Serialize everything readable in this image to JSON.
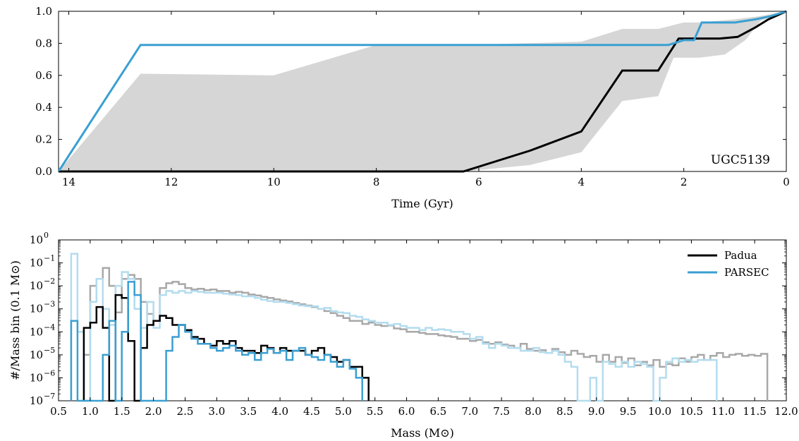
{
  "chart_data": [
    {
      "type": "line",
      "xlabel": "Time (Gyr)",
      "ylabel": "",
      "xlim": [
        14.2,
        0
      ],
      "ylim": [
        0,
        1.0
      ],
      "x_ticks": [
        14,
        12,
        10,
        8,
        6,
        4,
        2,
        0
      ],
      "y_ticks": [
        0.0,
        0.2,
        0.4,
        0.6,
        0.8,
        1.0
      ],
      "x_tick_labels": [
        "14",
        "12",
        "10",
        "8",
        "6",
        "4",
        "2",
        "0"
      ],
      "y_tick_labels": [
        "0.0",
        "0.2",
        "0.4",
        "0.6",
        "0.8",
        "1.0"
      ],
      "annotation": "UGC5139",
      "colors": {
        "black": "#000000",
        "blue": "#3a9fd2",
        "band": "#d6d6d6"
      },
      "band": {
        "upper": [
          [
            14.2,
            0.0
          ],
          [
            12.6,
            0.61
          ],
          [
            10.0,
            0.6
          ],
          [
            8.0,
            0.79
          ],
          [
            6.3,
            0.79
          ],
          [
            4.0,
            0.81
          ],
          [
            3.2,
            0.89
          ],
          [
            2.5,
            0.89
          ],
          [
            2.0,
            0.93
          ],
          [
            1.7,
            0.93
          ],
          [
            1.0,
            0.95
          ],
          [
            0.5,
            0.97
          ],
          [
            0.0,
            1.0
          ]
        ],
        "lower": [
          [
            14.2,
            0.0
          ],
          [
            6.3,
            0.0
          ],
          [
            5.0,
            0.04
          ],
          [
            4.0,
            0.12
          ],
          [
            3.2,
            0.44
          ],
          [
            2.5,
            0.47
          ],
          [
            2.2,
            0.71
          ],
          [
            1.7,
            0.71
          ],
          [
            1.2,
            0.73
          ],
          [
            0.8,
            0.82
          ],
          [
            0.5,
            0.94
          ],
          [
            0.0,
            1.0
          ]
        ]
      },
      "series": [
        {
          "color": "#000000",
          "points": [
            [
              14.2,
              0.0
            ],
            [
              6.3,
              0.0
            ],
            [
              5.0,
              0.13
            ],
            [
              4.0,
              0.25
            ],
            [
              3.2,
              0.63
            ],
            [
              2.5,
              0.63
            ],
            [
              2.1,
              0.83
            ],
            [
              1.7,
              0.83
            ],
            [
              1.3,
              0.83
            ],
            [
              0.95,
              0.84
            ],
            [
              0.6,
              0.9
            ],
            [
              0.35,
              0.95
            ],
            [
              0.0,
              1.0
            ]
          ]
        },
        {
          "color": "#3a9fd2",
          "points": [
            [
              14.2,
              0.0
            ],
            [
              12.6,
              0.79
            ],
            [
              2.3,
              0.79
            ],
            [
              2.0,
              0.82
            ],
            [
              1.8,
              0.82
            ],
            [
              1.65,
              0.93
            ],
            [
              1.0,
              0.93
            ],
            [
              0.6,
              0.95
            ],
            [
              0.3,
              0.97
            ],
            [
              0.0,
              1.0
            ]
          ]
        }
      ]
    },
    {
      "type": "histogram",
      "xlabel": "Mass (M⊙)",
      "ylabel": "#/Mass bin (0.1 M⊙)",
      "xlim": [
        0.5,
        12.0
      ],
      "ylim_log10": [
        -7,
        0
      ],
      "x_ticks": [
        0.5,
        1.0,
        1.5,
        2.0,
        2.5,
        3.0,
        3.5,
        4.0,
        4.5,
        5.0,
        5.5,
        6.0,
        6.5,
        7.0,
        7.5,
        8.0,
        8.5,
        9.0,
        9.5,
        10.0,
        10.5,
        11.0,
        11.5,
        12.0
      ],
      "x_tick_labels": [
        "0.5",
        "1.0",
        "1.5",
        "2.0",
        "2.5",
        "3.0",
        "3.5",
        "4.0",
        "4.5",
        "5.0",
        "5.5",
        "6.0",
        "6.5",
        "7.0",
        "7.5",
        "8.0",
        "8.5",
        "9.0",
        "9.5",
        "10.0",
        "10.5",
        "11.0",
        "11.5",
        "12.0"
      ],
      "y_tick_exponents": [
        -7,
        -6,
        -5,
        -4,
        -3,
        -2,
        -1,
        0
      ],
      "y_tick_labels": [
        "10",
        "10",
        "10",
        "10",
        "10",
        "10",
        "10",
        "10"
      ],
      "y_tick_sup": [
        "−7",
        "−6",
        "−5",
        "−4",
        "−3",
        "−2",
        "−1",
        "0"
      ],
      "legend": {
        "position": "top-right",
        "entries": [
          {
            "label": "Padua",
            "color": "#000000"
          },
          {
            "label": "PARSEC",
            "color": "#3a9fd2"
          }
        ]
      },
      "colors": {
        "black": "#000000",
        "blue": "#3a9fd2",
        "gray": "#a8a8a8",
        "light_blue": "#b3dcef"
      },
      "series": [
        {
          "name": "Padua",
          "color": "#a8a8a8",
          "bin_width": 0.1,
          "start": 0.9,
          "values": [
            1e-05,
            0.01,
            0.02,
            0.06,
            0.01,
            0.0007,
            0.02,
            0.03,
            0.02,
            0.002,
            0.0006,
            0.0003,
            0.008,
            0.013,
            0.015,
            0.012,
            0.008,
            0.007,
            0.0075,
            0.0065,
            0.007,
            0.006,
            0.006,
            0.005,
            0.0055,
            0.005,
            0.0042,
            0.0038,
            0.0033,
            0.003,
            0.0026,
            0.0023,
            0.0021,
            0.0018,
            0.0016,
            0.0014,
            0.0012,
            0.001,
            0.0008,
            0.00065,
            0.0005,
            0.0004,
            0.0003,
            0.0003,
            0.00022,
            0.00025,
            0.0002,
            0.00018,
            0.00019,
            0.00014,
            0.00013,
            0.0001,
            0.0001,
            9e-05,
            8e-05,
            8e-05,
            7e-05,
            6.5e-05,
            6e-05,
            5e-05,
            5e-05,
            4e-05,
            4.5e-05,
            3.5e-05,
            3e-05,
            3.5e-05,
            2.8e-05,
            2.5e-05,
            2e-05,
            3e-05,
            1.8e-05,
            1.5e-05,
            1.6e-05,
            1.2e-05,
            1.8e-05,
            1.3e-05,
            1e-05,
            1.5e-05,
            1.1e-05,
            8e-06,
            9e-06,
            5e-06,
            1e-05,
            5e-06,
            8e-06,
            4.5e-06,
            7e-06,
            3.5e-06,
            5e-06,
            3.5e-06,
            6e-06,
            3e-06,
            4e-06,
            3.5e-06,
            7e-06,
            5e-06,
            8e-06,
            1e-05,
            6e-06,
            9e-06,
            1.2e-05,
            8e-06,
            1e-05,
            1.1e-05,
            9e-06,
            1e-05,
            9e-06,
            1.1e-05
          ]
        },
        {
          "name": "PARSEC",
          "color": "#b3dcef",
          "bin_width": 0.1,
          "start": 0.7,
          "values": [
            0.25,
            0.0001,
            1e-07,
            0.002,
            0.02,
            0.001,
            0.0002,
            0.01,
            0.04,
            0.02,
            0.001,
            0.00015,
            0.002,
            0.00015,
            0.004,
            0.006,
            0.005,
            0.006,
            0.005,
            0.006,
            0.0055,
            0.005,
            0.005,
            0.005,
            0.0045,
            0.0042,
            0.004,
            0.0035,
            0.0035,
            0.003,
            0.0025,
            0.0022,
            0.002,
            0.002,
            0.0018,
            0.0016,
            0.0014,
            0.0013,
            0.0013,
            0.001,
            0.0011,
            0.0008,
            0.0007,
            0.00065,
            0.0005,
            0.00045,
            0.00035,
            0.0003,
            0.00025,
            0.00025,
            0.0002,
            0.00022,
            0.00018,
            0.00015,
            0.00015,
            0.00012,
            0.00015,
            0.00012,
            0.00013,
            0.00012,
            0.0001,
            0.0001,
            8e-05,
            5e-05,
            6e-05,
            3e-05,
            2e-05,
            3e-05,
            2.5e-05,
            2e-05,
            2e-05,
            1.5e-05,
            1.5e-05,
            2e-05,
            1.3e-05,
            1.2e-05,
            1.5e-05,
            1e-05,
            5e-06,
            3e-06,
            1e-07,
            1e-07,
            1e-06,
            1e-07,
            5e-06,
            4e-06,
            3e-06,
            5e-06,
            3e-06,
            5e-06,
            4e-06,
            3e-06,
            1e-07,
            1e-06,
            5e-06,
            7e-06,
            5e-06,
            6e-06,
            5e-06,
            6e-06,
            6e-06,
            6e-06
          ]
        },
        {
          "name": "Padua",
          "color": "#000000",
          "bin_width": 0.1,
          "start": 0.9,
          "values": [
            0.00015,
            0.00025,
            0.0012,
            0.00015,
            1e-07,
            0.004,
            0.003,
            4e-05,
            1e-07,
            2e-05,
            0.0002,
            0.0003,
            0.0005,
            0.0004,
            0.0002,
            0.0002,
            0.00012,
            6e-05,
            5e-05,
            3e-05,
            2.5e-05,
            4e-05,
            3e-05,
            4e-05,
            2e-05,
            1.5e-05,
            1.5e-05,
            1.2e-05,
            2.5e-05,
            2e-05,
            1.2e-05,
            2e-05,
            1.5e-05,
            1.5e-05,
            1.5e-05,
            1e-05,
            1.5e-05,
            2e-05,
            1e-05,
            8e-06,
            5e-06,
            6e-06,
            3e-06,
            3e-06,
            1e-06
          ]
        },
        {
          "name": "PARSEC",
          "color": "#3a9fd2",
          "bin_width": 0.1,
          "start": 0.7,
          "values": [
            0.0003,
            1e-07,
            1e-07,
            1e-07,
            1e-07,
            1e-05,
            0.0003,
            1e-07,
            0.0001,
            0.015,
            0.004,
            1e-07,
            1e-07,
            1e-07,
            1e-07,
            1.5e-05,
            6e-05,
            0.0002,
            0.0001,
            5e-05,
            3e-05,
            3e-05,
            2e-05,
            1.5e-05,
            2e-05,
            2.5e-05,
            1.5e-05,
            1e-05,
            1.2e-05,
            6e-06,
            1.2e-05,
            1.8e-05,
            1.2e-05,
            1.5e-05,
            6e-06,
            1.5e-05,
            2e-05,
            1e-05,
            8e-06,
            6e-06,
            1e-05,
            5e-06,
            3e-06,
            6e-06,
            2.5e-06,
            1e-06
          ]
        }
      ]
    }
  ]
}
